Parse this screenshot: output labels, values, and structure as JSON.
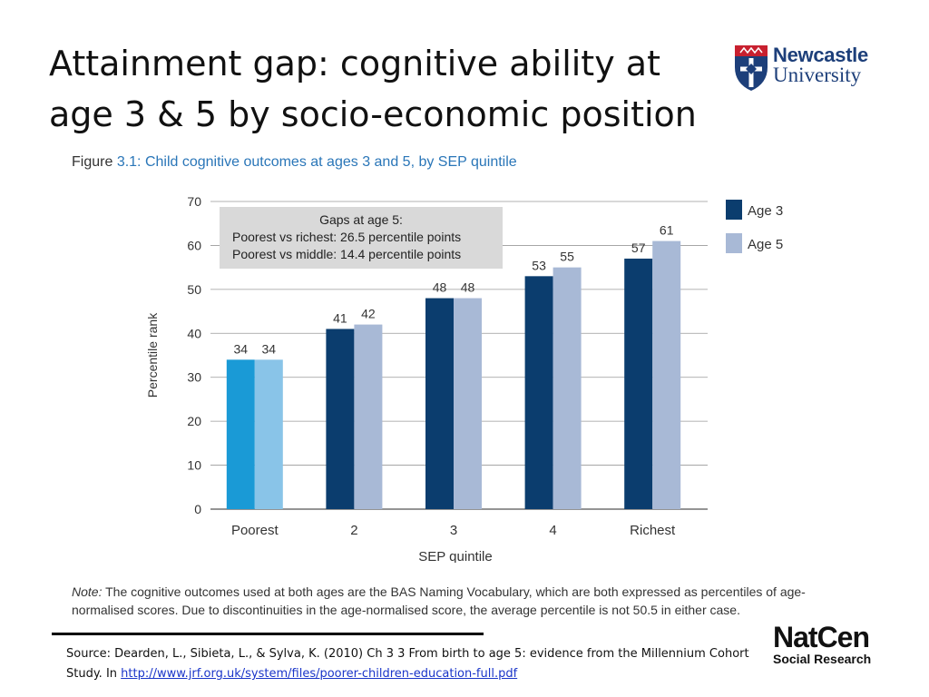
{
  "slide": {
    "title_line1": "Attainment gap: cognitive ability at",
    "title_line2": "age 3 & 5 by socio-economic position"
  },
  "logos": {
    "newcastle_line1": "Newcastle",
    "newcastle_line2": "University",
    "natcen_line1": "NatCen",
    "natcen_line2": "Social Research"
  },
  "figure": {
    "label": "Figure",
    "caption": "3.1: Child cognitive outcomes at ages 3 and 5, by SEP quintile",
    "note_label": "Note:",
    "note_text": " The cognitive outcomes used at both ages are the BAS Naming Vocabulary, which are both expressed as percentiles of age-normalised scores. Due to discontinuities in the age-normalised score, the average percentile is not 50.5 in either case."
  },
  "source": {
    "text": "Source: Dearden, L., Sibieta, L., & Sylva, K. (2010) Ch 3 3 From birth to age 5: evidence from the Millennium Cohort Study. In ",
    "link": "http://www.jrf.org.uk/system/files/poorer-children-education-full.pdf"
  },
  "chart_data": {
    "type": "bar",
    "title": "",
    "xlabel": "SEP quintile",
    "ylabel": "Percentile rank",
    "ylim": [
      0,
      70
    ],
    "yticks": [
      0,
      10,
      20,
      30,
      40,
      50,
      60,
      70
    ],
    "grid": true,
    "legend_position": "right",
    "categories": [
      "Poorest",
      "2",
      "3",
      "4",
      "Richest"
    ],
    "series": [
      {
        "name": "Age 3",
        "values": [
          34,
          41,
          48,
          53,
          57
        ],
        "color": "#0b3d6e",
        "highlight_color": "#1a9ad6"
      },
      {
        "name": "Age 5",
        "values": [
          34,
          42,
          48,
          55,
          61
        ],
        "color": "#a8b9d6",
        "highlight_color": "#89c4e8"
      }
    ],
    "data_labels": [
      [
        "34",
        "41",
        "48",
        "53",
        "57"
      ],
      [
        "34",
        "42",
        "48",
        "55",
        "61"
      ]
    ],
    "annotation": {
      "title": "Gaps at age 5:",
      "line1": "Poorest vs richest: 26.5 percentile points",
      "line2": "Poorest vs middle: 14.4 percentile points",
      "background": "#d9d9d9"
    }
  }
}
